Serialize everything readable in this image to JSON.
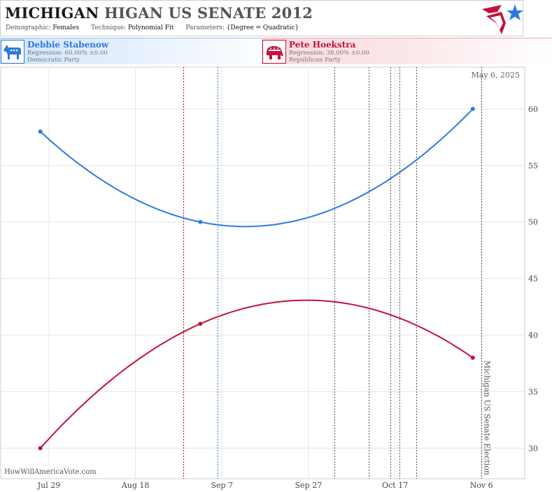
{
  "header": {
    "title_state": "MICHIGAN",
    "title_rest": "HIGAN US SENATE 2012",
    "meta": {
      "demographic_label": "Demographic:",
      "demographic_value": "Females",
      "technique_label": "Technique:",
      "technique_value": "Polynomial Fit",
      "parameters_label": "Parameters:",
      "parameters_value": "{Degree = Quadratic}"
    }
  },
  "candidates": {
    "dem": {
      "name": "Debbie Stabenow",
      "regression": "Regression: 60.00% ±0.00",
      "party": "Democratic Party",
      "color": "#2c7be0"
    },
    "rep": {
      "name": "Pete Hoekstra",
      "regression": "Regression: 38.00% ±0.00",
      "party": "Republican Party",
      "color": "#c2133a"
    }
  },
  "chart_data": {
    "type": "line",
    "date_label": "May 6, 2025",
    "watermark": "HowWillAmericaVote.com",
    "election_label": "Michigan US Senate Election",
    "x_ticks": [
      {
        "label": "Jul 29",
        "date": "2012-07-29"
      },
      {
        "label": "Aug 18",
        "date": "2012-08-18"
      },
      {
        "label": "Sep 7",
        "date": "2012-09-07"
      },
      {
        "label": "Sep 27",
        "date": "2012-09-27"
      },
      {
        "label": "Oct 17",
        "date": "2012-10-17"
      },
      {
        "label": "Nov 6",
        "date": "2012-11-06"
      }
    ],
    "y_ticks": [
      30,
      35,
      40,
      45,
      50,
      55,
      60
    ],
    "xlim": [
      "2012-07-18",
      "2012-11-16"
    ],
    "ylim": [
      27.3,
      63.7
    ],
    "grid": true,
    "election_date": "2012-11-06",
    "event_lines": [
      {
        "date": "2012-08-29",
        "color": "#b0103a"
      },
      {
        "date": "2012-09-06",
        "color": "#2c7be0"
      },
      {
        "date": "2012-10-03",
        "color": "#555555"
      },
      {
        "date": "2012-10-11",
        "color": "#555555"
      },
      {
        "date": "2012-10-16",
        "color": "#555555"
      },
      {
        "date": "2012-10-18",
        "color": "#555555"
      },
      {
        "date": "2012-10-22",
        "color": "#555555"
      }
    ],
    "series": [
      {
        "party": "dem",
        "color": "#2c7be0",
        "points": [
          {
            "date": "2012-07-27",
            "value": 58
          },
          {
            "date": "2012-09-02",
            "value": 50
          },
          {
            "date": "2012-11-04",
            "value": 60
          }
        ]
      },
      {
        "party": "rep",
        "color": "#c2133a",
        "points": [
          {
            "date": "2012-07-27",
            "value": 30
          },
          {
            "date": "2012-09-02",
            "value": 41
          },
          {
            "date": "2012-11-04",
            "value": 38
          }
        ]
      }
    ]
  }
}
